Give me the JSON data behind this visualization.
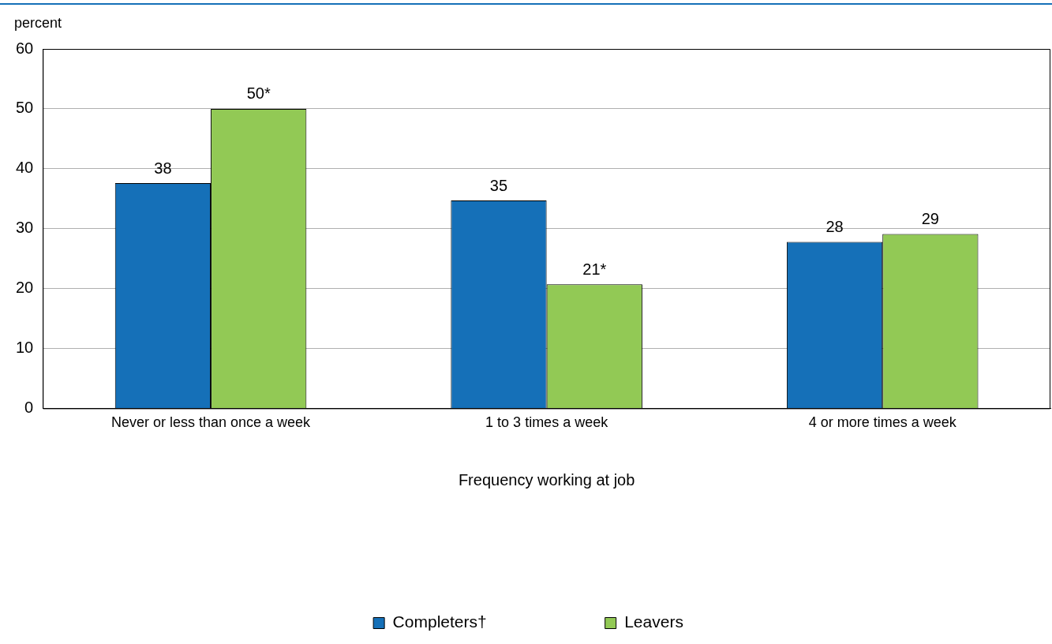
{
  "chart_data": {
    "type": "bar",
    "ylabel": "percent",
    "xlabel": "Frequency working at job",
    "categories": [
      "Never or less than once a week",
      "1 to 3 times a week",
      "4 or more times a week"
    ],
    "series": [
      {
        "name": "Completers†",
        "color": "#1570b8",
        "values": [
          37.6,
          34.7,
          27.8
        ],
        "value_labels": [
          "38",
          "35",
          "28"
        ]
      },
      {
        "name": "Leavers",
        "color": "#92c955",
        "values": [
          50,
          20.7,
          29.1
        ],
        "value_labels": [
          "50*",
          "21*",
          "29"
        ]
      }
    ],
    "ylim": [
      0,
      60
    ],
    "yticks": [
      0,
      10,
      20,
      30,
      40,
      50,
      60
    ],
    "grid": "y",
    "legend": "bottom"
  }
}
